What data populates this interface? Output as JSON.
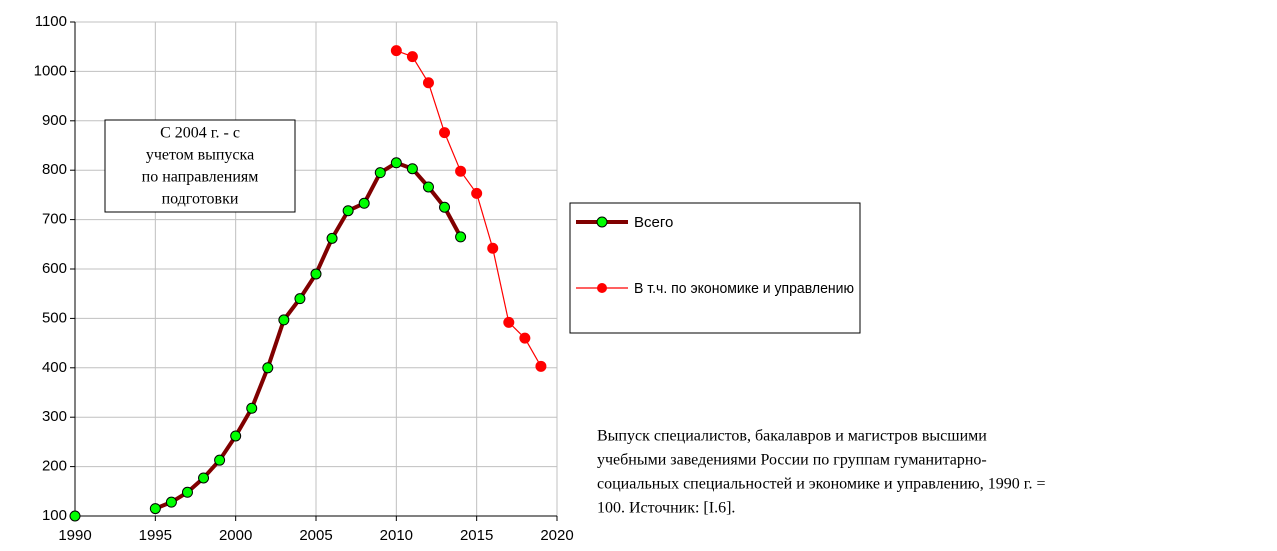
{
  "chart_data": {
    "type": "line",
    "x": [
      1990,
      1991,
      1992,
      1993,
      1994,
      1995,
      1996,
      1997,
      1998,
      1999,
      2000,
      2001,
      2002,
      2003,
      2004,
      2005,
      2006,
      2007,
      2008,
      2009,
      2010,
      2011,
      2012,
      2013,
      2014,
      2015,
      2016,
      2017,
      2018,
      2019
    ],
    "series": [
      {
        "name": "Всего",
        "color": "#800000",
        "marker_color": "#00ff00",
        "values": [
          100,
          null,
          null,
          null,
          null,
          115,
          128,
          148,
          177,
          213,
          262,
          318,
          400,
          497,
          540,
          590,
          662,
          718,
          733,
          795,
          815,
          803,
          766,
          725,
          665,
          null,
          null,
          null,
          null,
          null
        ]
      },
      {
        "name": "В т.ч. по экономике и управлению",
        "color": "#ff0000",
        "marker_color": "#ff0000",
        "values": [
          null,
          null,
          null,
          null,
          null,
          null,
          null,
          null,
          null,
          null,
          null,
          null,
          null,
          null,
          null,
          null,
          null,
          null,
          null,
          null,
          1042,
          1030,
          977,
          876,
          798,
          753,
          642,
          492,
          460,
          403
        ]
      }
    ],
    "xlim": [
      1990,
      2020
    ],
    "xticks": [
      1990,
      1995,
      2000,
      2005,
      2010,
      2015,
      2020
    ],
    "ylim": [
      100,
      1100
    ],
    "yticks": [
      100,
      200,
      300,
      400,
      500,
      600,
      700,
      800,
      900,
      1000,
      1100
    ],
    "grid": true,
    "annotation": [
      "С 2004 г. - с",
      "учетом выпуска",
      "по направлениям",
      "подготовки"
    ],
    "caption": [
      "Выпуск специалистов, бакалавров и магистров  высшими",
      "учебными заведениями России по группам гуманитарно-",
      "социальных специальностей и экономике и управлению, 1990 г. =",
      "100. Источник: [I.6]."
    ]
  }
}
